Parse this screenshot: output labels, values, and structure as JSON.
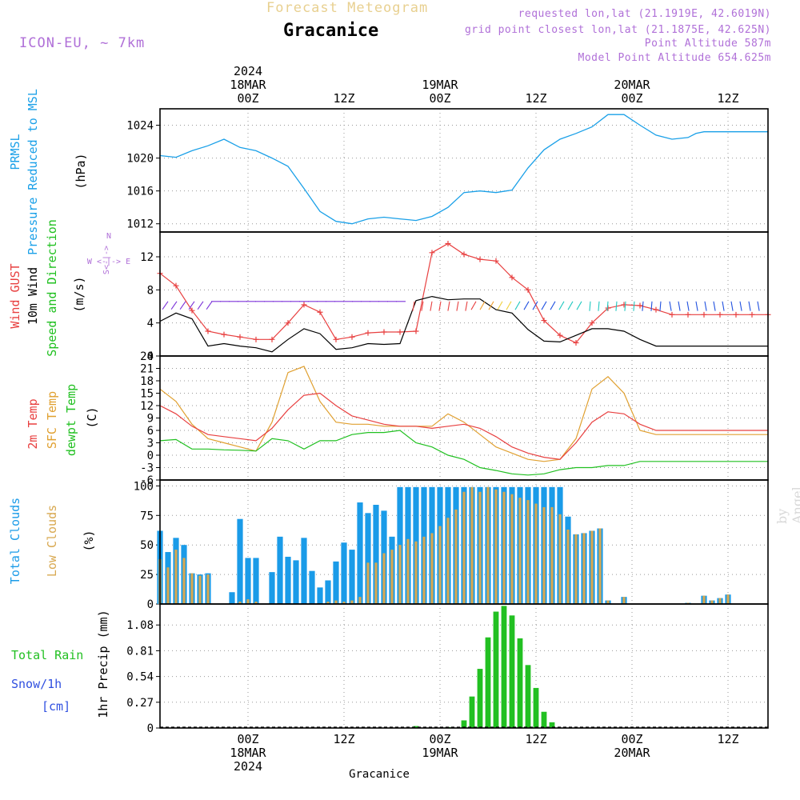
{
  "header": {
    "title_sup": "Forecast Meteogram",
    "title_main": "Gracanice",
    "model": "ICON-EU, ~ 7km",
    "requested": "requested lon,lat (21.1919E, 42.6019N)",
    "gridpoint": "grid point closest lon,lat (21.1875E, 42.625N)",
    "point_alt": "Point Altitude 587m",
    "model_alt": "Model Point Altitude 654.625m",
    "footer_name": "Gracanice",
    "watermark": "by Angel"
  },
  "colors": {
    "pressure": "#1aa0e8",
    "gust": "#e84040",
    "wind": "#000000",
    "temp2m": "#e84040",
    "sfctemp": "#e0a030",
    "dewpt": "#20c020",
    "total_clouds": "#1a9be8",
    "low_clouds": "#d8a850",
    "rain": "#22c022",
    "snow": "#3050e0",
    "info": "#b070d8"
  },
  "time_axis": {
    "top_date_labels": [
      {
        "hour": 24,
        "lines": [
          "2024",
          "18MAR",
          "00Z"
        ]
      },
      {
        "hour": 48,
        "lines": [
          "19MAR",
          "00Z"
        ]
      },
      {
        "hour": 72,
        "lines": [
          "20MAR",
          "00Z"
        ]
      }
    ],
    "noon_labels": [
      {
        "hour": 36,
        "text": "12Z"
      },
      {
        "hour": 60,
        "text": "12Z"
      },
      {
        "hour": 84,
        "text": "12Z"
      }
    ],
    "bottom_date_labels": [
      {
        "hour": 24,
        "lines": [
          "00Z",
          "18MAR",
          "2024"
        ]
      },
      {
        "hour": 48,
        "lines": [
          "00Z",
          "19MAR"
        ]
      },
      {
        "hour": 72,
        "lines": [
          "00Z",
          "20MAR"
        ]
      }
    ],
    "hour_range": [
      13,
      89
    ]
  },
  "panel_labels": {
    "pressure": [
      "PRMSL",
      "Pressure Reduced to MSL"
    ],
    "pressure_unit": "(hPa)",
    "wind": [
      "Wind GUST",
      "10m Wind",
      "Speed and Direction"
    ],
    "wind_unit": "(m/s)",
    "compass": [
      "N",
      "S<-|->",
      "W <-|-> E"
    ],
    "temp": [
      "2m Temp",
      "SFC Temp",
      "dewpt Temp"
    ],
    "temp_unit": "(C)",
    "clouds": [
      "Total Clouds",
      "Low Clouds"
    ],
    "clouds_unit": "(%)",
    "precip_left": [
      "Total  Rain",
      "Snow/1h",
      "[cm]"
    ],
    "precip_unit": "1hr Precip (mm)"
  },
  "chart_data": [
    {
      "type": "line",
      "title": "PRMSL Pressure Reduced to MSL",
      "ylabel": "hPa",
      "ylim": [
        1011,
        1026
      ],
      "yticks": [
        1012,
        1016,
        1020,
        1024
      ],
      "x": [
        13,
        15,
        17,
        19,
        21,
        23,
        25,
        27,
        29,
        31,
        33,
        35,
        37,
        39,
        41,
        43,
        45,
        47,
        49,
        51,
        53,
        55,
        57,
        59,
        61,
        63,
        65,
        67,
        69,
        71,
        73,
        75,
        77,
        79,
        80,
        81,
        83,
        85,
        87,
        89
      ],
      "series": [
        {
          "name": "PRMSL",
          "values": [
            1020.3,
            1020.1,
            1020.9,
            1021.5,
            1022.3,
            1021.3,
            1020.9,
            1020.0,
            1019.0,
            1016.3,
            1013.5,
            1012.3,
            1012.0,
            1012.6,
            1012.8,
            1012.6,
            1012.4,
            1012.9,
            1014.0,
            1015.8,
            1016.0,
            1015.8,
            1016.1,
            1018.8,
            1021.0,
            1022.3,
            1023.0,
            1023.8,
            1025.3,
            1025.3,
            1024.0,
            1022.8,
            1022.3,
            1022.5,
            1023.0,
            1023.2,
            1023.2,
            1023.2,
            1023.2,
            1023.2
          ]
        }
      ]
    },
    {
      "type": "line",
      "title": "Wind GUST / 10m Wind Speed and Direction",
      "ylabel": "m/s",
      "ylim": [
        0,
        15
      ],
      "yticks": [
        0,
        4,
        8,
        12
      ],
      "x": [
        13,
        15,
        17,
        19,
        21,
        23,
        25,
        27,
        29,
        31,
        33,
        35,
        37,
        39,
        41,
        43,
        45,
        47,
        49,
        51,
        53,
        55,
        57,
        59,
        61,
        63,
        65,
        67,
        69,
        71,
        73,
        75,
        77,
        79,
        81,
        83,
        85,
        87,
        89
      ],
      "series": [
        {
          "name": "Wind GUST",
          "values": [
            10.0,
            8.5,
            5.5,
            3.0,
            2.6,
            2.3,
            2.0,
            2.0,
            4.0,
            6.2,
            5.3,
            2.0,
            2.3,
            2.8,
            2.9,
            2.9,
            3.0,
            12.5,
            13.6,
            12.3,
            11.7,
            11.5,
            9.5,
            8.0,
            4.3,
            2.5,
            1.6,
            4.0,
            5.8,
            6.2,
            6.1,
            5.6,
            5.0,
            5.0,
            5.0,
            5.0,
            5.0,
            5.0,
            5.0
          ]
        },
        {
          "name": "10m Wind",
          "values": [
            4.2,
            5.2,
            4.5,
            1.2,
            1.5,
            1.2,
            1.0,
            0.5,
            2.0,
            3.3,
            2.7,
            0.8,
            1.0,
            1.5,
            1.4,
            1.5,
            6.7,
            7.2,
            6.8,
            6.9,
            6.9,
            5.6,
            5.2,
            3.2,
            1.8,
            1.7,
            2.5,
            3.3,
            3.3,
            3.0,
            2.0,
            1.2,
            1.2,
            1.2,
            1.2,
            1.2,
            1.2,
            1.2,
            1.2
          ]
        }
      ]
    },
    {
      "type": "line",
      "title": "2m Temp / SFC Temp / dewpt Temp",
      "ylabel": "C",
      "ylim": [
        -6,
        24
      ],
      "yticks": [
        -6,
        -3,
        0,
        3,
        6,
        9,
        12,
        15,
        18,
        21,
        24
      ],
      "x": [
        13,
        15,
        17,
        19,
        21,
        23,
        25,
        27,
        29,
        31,
        33,
        35,
        37,
        39,
        41,
        43,
        45,
        47,
        49,
        51,
        53,
        55,
        57,
        59,
        61,
        63,
        65,
        67,
        69,
        71,
        73,
        75,
        77,
        79,
        81,
        83,
        85,
        87,
        89
      ],
      "series": [
        {
          "name": "2m Temp",
          "values": [
            12.0,
            10.0,
            7.0,
            5.0,
            4.5,
            4.0,
            3.5,
            6.5,
            11.0,
            14.5,
            15.0,
            12.0,
            9.5,
            8.5,
            7.5,
            7.0,
            7.0,
            6.5,
            7.0,
            7.5,
            6.5,
            4.5,
            2.0,
            0.5,
            -0.5,
            -1.0,
            3.0,
            8.0,
            10.5,
            10.0,
            7.5,
            6.0,
            6.0,
            6.0,
            6.0,
            6.0,
            6.0,
            6.0,
            6.0
          ]
        },
        {
          "name": "SFC Temp",
          "values": [
            16.0,
            13.0,
            7.5,
            4.0,
            3.0,
            2.0,
            1.0,
            8.0,
            20.0,
            21.5,
            13.0,
            8.0,
            7.5,
            7.5,
            7.0,
            7.0,
            7.0,
            7.0,
            10.0,
            8.0,
            5.0,
            2.0,
            0.5,
            -1.0,
            -1.5,
            -1.0,
            4.0,
            16.0,
            19.0,
            15.0,
            6.0,
            5.0,
            5.0,
            5.0,
            5.0,
            5.0,
            5.0,
            5.0,
            5.0
          ]
        },
        {
          "name": "dewpt Temp",
          "values": [
            3.5,
            3.8,
            1.5,
            1.5,
            1.3,
            1.2,
            1.0,
            4.0,
            3.5,
            1.5,
            3.5,
            3.5,
            5.0,
            5.5,
            5.5,
            6.0,
            3.0,
            2.0,
            0.0,
            -1.0,
            -3.0,
            -3.7,
            -4.5,
            -4.8,
            -4.5,
            -3.5,
            -3.0,
            -3.0,
            -2.5,
            -2.5,
            -1.5,
            -1.5,
            -1.5,
            -1.5,
            -1.5,
            -1.5,
            -1.5,
            -1.5,
            -1.5
          ]
        }
      ]
    },
    {
      "type": "bar",
      "title": "Total Clouds / Low Clouds",
      "ylabel": "%",
      "ylim": [
        0,
        105
      ],
      "yticks": [
        0,
        25,
        50,
        75,
        100
      ],
      "x": [
        13,
        14,
        15,
        16,
        17,
        18,
        19,
        20,
        21,
        22,
        23,
        24,
        25,
        26,
        27,
        28,
        29,
        30,
        31,
        32,
        33,
        34,
        35,
        36,
        37,
        38,
        39,
        40,
        41,
        42,
        43,
        44,
        45,
        46,
        47,
        48,
        49,
        50,
        51,
        52,
        53,
        54,
        55,
        56,
        57,
        58,
        59,
        60,
        61,
        62,
        63,
        64,
        65,
        66,
        67,
        68,
        69,
        70,
        71,
        72,
        73,
        74,
        75,
        76,
        77,
        78,
        79,
        80,
        81,
        82,
        83,
        84,
        85,
        86,
        87,
        88
      ],
      "series": [
        {
          "name": "Total Clouds",
          "values": [
            62,
            44,
            56,
            50,
            26,
            25,
            26,
            0,
            0,
            10,
            72,
            39,
            39,
            0,
            27,
            57,
            40,
            37,
            56,
            28,
            14,
            20,
            36,
            52,
            46,
            86,
            77,
            84,
            79,
            57,
            99,
            99,
            99,
            99,
            99,
            99,
            99,
            99,
            99,
            99,
            99,
            99,
            99,
            99,
            99,
            99,
            99,
            99,
            99,
            99,
            99,
            74,
            59,
            60,
            62,
            64,
            3,
            0,
            6,
            0,
            0,
            0,
            0,
            0,
            0,
            0,
            1,
            0,
            7,
            3,
            5,
            8,
            0,
            0,
            0,
            0
          ]
        },
        {
          "name": "Low Clouds",
          "values": [
            38,
            31,
            46,
            39,
            26,
            24,
            25,
            0,
            0,
            0,
            2,
            4,
            2,
            0,
            0,
            0,
            0,
            0,
            0,
            0,
            0,
            2,
            3,
            2,
            3,
            6,
            35,
            35,
            43,
            46,
            50,
            55,
            53,
            57,
            60,
            66,
            73,
            80,
            95,
            99,
            95,
            99,
            97,
            95,
            93,
            90,
            88,
            85,
            82,
            82,
            76,
            63,
            59,
            60,
            62,
            64,
            3,
            0,
            6,
            0,
            0,
            0,
            0,
            0,
            0,
            0,
            1,
            0,
            7,
            3,
            5,
            8,
            0,
            0,
            0,
            0
          ]
        }
      ]
    },
    {
      "type": "bar",
      "title": "1hr Precip",
      "ylabel": "1hr Precip (mm)",
      "ylim": [
        0,
        1.3
      ],
      "yticks": [
        0,
        0.27,
        0.54,
        0.81,
        1.08
      ],
      "x": [
        45,
        49,
        51,
        52,
        53,
        54,
        55,
        56,
        57,
        58,
        59,
        60,
        61,
        62
      ],
      "series": [
        {
          "name": "Total Rain",
          "values": [
            0.02,
            0.01,
            0.08,
            0.33,
            0.62,
            0.95,
            1.22,
            1.28,
            1.18,
            0.94,
            0.66,
            0.42,
            0.17,
            0.06
          ]
        },
        {
          "name": "Snow/1h",
          "values": [
            0,
            0,
            0,
            0,
            0,
            0,
            0,
            0,
            0,
            0,
            0,
            0,
            0,
            0
          ]
        }
      ]
    }
  ]
}
